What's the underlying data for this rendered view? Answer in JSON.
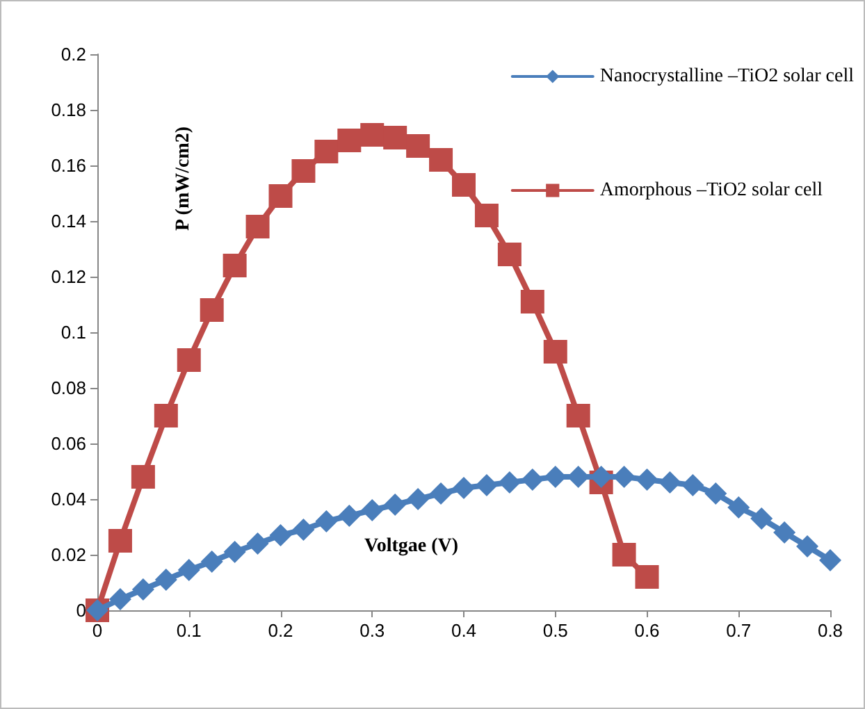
{
  "chart_data": {
    "type": "line",
    "xlabel": "Voltgae (V)",
    "ylabel": "P (mW/cm2)",
    "series": [
      {
        "name": "Nanocrystalline –TiO2 solar cell",
        "color": "#4a7ebb",
        "marker": "diamond",
        "x": [
          0,
          0.025,
          0.05,
          0.075,
          0.1,
          0.125,
          0.15,
          0.175,
          0.2,
          0.225,
          0.25,
          0.275,
          0.3,
          0.325,
          0.35,
          0.375,
          0.4,
          0.425,
          0.45,
          0.475,
          0.5,
          0.525,
          0.55,
          0.575,
          0.6,
          0.625,
          0.65,
          0.675,
          0.7,
          0.725,
          0.75,
          0.775,
          0.8
        ],
        "values": [
          0,
          0.004,
          0.0075,
          0.011,
          0.0145,
          0.0175,
          0.021,
          0.024,
          0.027,
          0.029,
          0.032,
          0.034,
          0.036,
          0.038,
          0.04,
          0.042,
          0.044,
          0.045,
          0.046,
          0.047,
          0.048,
          0.048,
          0.048,
          0.048,
          0.047,
          0.046,
          0.045,
          0.042,
          0.037,
          0.033,
          0.028,
          0.023,
          0.018
        ]
      },
      {
        "name": "Amorphous –TiO2 solar cell",
        "color": "#be4b48",
        "marker": "square",
        "x": [
          0,
          0.025,
          0.05,
          0.075,
          0.1,
          0.125,
          0.15,
          0.175,
          0.2,
          0.225,
          0.25,
          0.275,
          0.3,
          0.325,
          0.35,
          0.375,
          0.4,
          0.425,
          0.45,
          0.475,
          0.5,
          0.525,
          0.55,
          0.575,
          0.6
        ],
        "values": [
          0,
          0.025,
          0.048,
          0.07,
          0.09,
          0.108,
          0.124,
          0.138,
          0.149,
          0.158,
          0.165,
          0.169,
          0.171,
          0.17,
          0.167,
          0.162,
          0.153,
          0.142,
          0.128,
          0.111,
          0.093,
          0.07,
          0.046,
          0.02,
          0.012
        ]
      }
    ],
    "xlim": [
      0,
      0.8
    ],
    "xticks": [
      0,
      0.1,
      0.2,
      0.3,
      0.4,
      0.5,
      0.6,
      0.7,
      0.8
    ],
    "ylim": [
      0,
      0.2
    ],
    "yticks": [
      0,
      0.02,
      0.04,
      0.06,
      0.08,
      0.1,
      0.12,
      0.14,
      0.16,
      0.18,
      0.2
    ],
    "grid": false,
    "legend": "top right",
    "line_style": "solid"
  }
}
